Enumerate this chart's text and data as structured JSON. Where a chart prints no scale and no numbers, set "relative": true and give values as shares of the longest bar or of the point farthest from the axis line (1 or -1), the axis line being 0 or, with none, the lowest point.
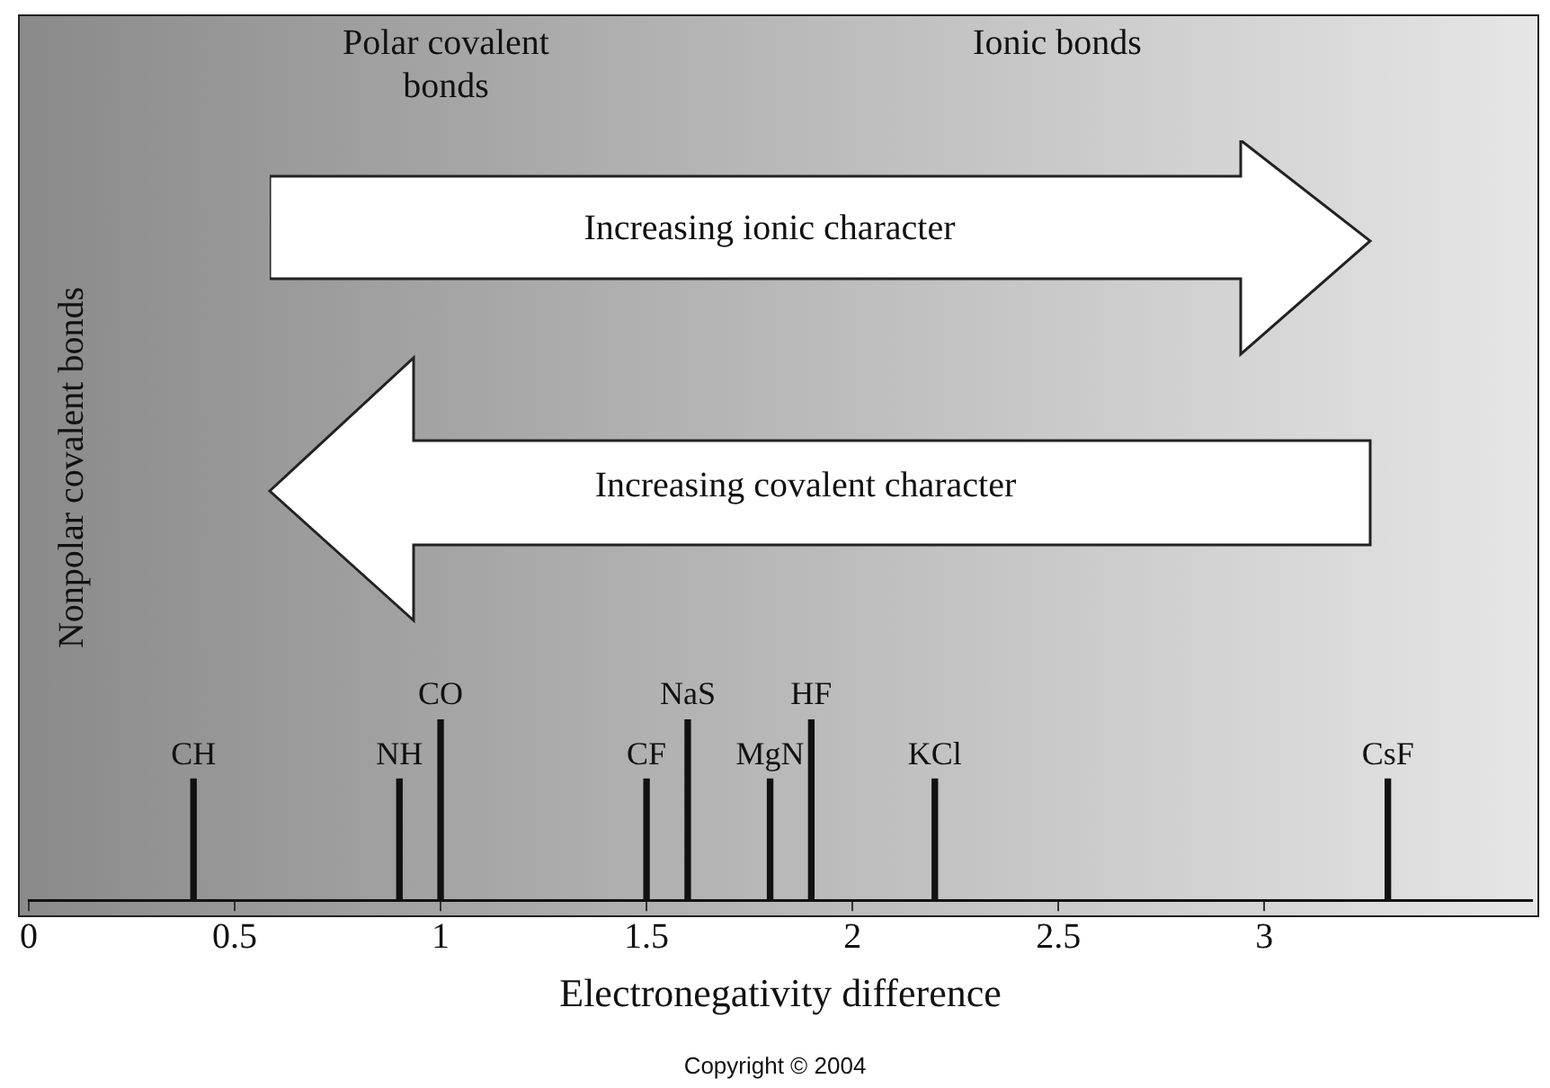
{
  "chart_data": {
    "type": "bar",
    "relative": true,
    "color": "#111111",
    "grid": false,
    "x": [
      0.4,
      0.9,
      1.0,
      1.5,
      1.6,
      1.8,
      1.9,
      2.2,
      3.3
    ],
    "values": [
      0.67,
      0.67,
      1,
      0.67,
      1,
      0.67,
      1,
      0.67,
      0.67
    ],
    "xlim": [
      0,
      3.65
    ],
    "xticks": [
      0,
      0.5,
      1,
      1.5,
      2,
      2.5,
      3
    ],
    "xlabel": "Electronegativity difference",
    "annotations": [
      "Nonpolar covalent bonds",
      "Polar covalent bonds",
      "Ionic bonds",
      "Increasing ionic character",
      "Increasing covalent character",
      "Copyright © 2004",
      {
        "text": "CH",
        "x": 0.4,
        "y": 0.67
      },
      {
        "text": "NH",
        "x": 0.9,
        "y": 0.67
      },
      {
        "text": "CO",
        "x": 1.0,
        "y": 1
      },
      {
        "text": "CF",
        "x": 1.5,
        "y": 0.67
      },
      {
        "text": "NaS",
        "x": 1.6,
        "y": 1
      },
      {
        "text": "MgN",
        "x": 1.8,
        "y": 0.67
      },
      {
        "text": "HF",
        "x": 1.9,
        "y": 1
      },
      {
        "text": "KCl",
        "x": 2.2,
        "y": 0.67
      },
      {
        "text": "CsF",
        "x": 3.3,
        "y": 0.67
      }
    ]
  }
}
